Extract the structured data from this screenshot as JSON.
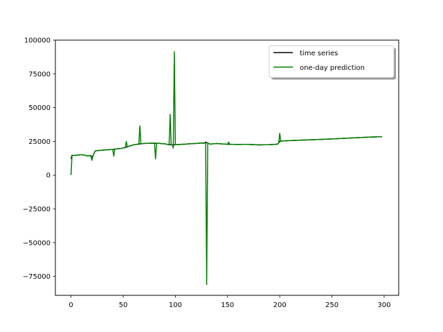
{
  "chart_data": {
    "type": "line",
    "title": "",
    "xlabel": "",
    "ylabel": "",
    "xlim": [
      -14.95,
      313.95
    ],
    "ylim": [
      -89000,
      100000
    ],
    "xticks": [
      0,
      50,
      100,
      150,
      200,
      250,
      300
    ],
    "yticks": [
      -75000,
      -50000,
      -25000,
      0,
      25000,
      50000,
      75000,
      100000
    ],
    "xtick_labels": [
      "0",
      "50",
      "100",
      "150",
      "200",
      "250",
      "300"
    ],
    "ytick_labels": [
      "−75000",
      "−50000",
      "−25000",
      "0",
      "25000",
      "50000",
      "75000",
      "100000"
    ],
    "legend": {
      "location": "top-right"
    },
    "series": [
      {
        "name": "time series",
        "color": "#000000",
        "x": [
          0,
          1,
          2,
          5,
          8,
          10,
          13,
          16,
          19,
          20,
          21,
          22,
          23,
          25,
          30,
          35,
          40,
          42,
          44,
          48,
          52,
          54,
          56,
          60,
          65,
          67,
          70,
          75,
          80,
          82,
          84,
          86,
          90,
          94,
          96,
          98,
          100,
          102,
          105,
          110,
          115,
          120,
          125,
          128,
          129,
          130,
          131,
          133,
          136,
          140,
          145,
          150,
          155,
          160,
          165,
          170,
          175,
          180,
          185,
          190,
          195,
          198,
          200,
          202,
          205,
          210,
          220,
          230,
          240,
          250,
          260,
          270,
          280,
          290,
          298
        ],
        "y": [
          12000,
          14800,
          14600,
          14700,
          15000,
          15200,
          14800,
          14200,
          14500,
          13500,
          14000,
          16000,
          17800,
          18200,
          18500,
          18800,
          19000,
          19300,
          19500,
          19800,
          20500,
          21000,
          21500,
          22500,
          23000,
          23200,
          23500,
          23600,
          23700,
          23500,
          23600,
          23400,
          23200,
          22500,
          22600,
          22400,
          22500,
          22600,
          22800,
          23000,
          23300,
          23500,
          23800,
          23700,
          24500,
          24200,
          23800,
          23000,
          23200,
          23400,
          23100,
          22900,
          22800,
          22700,
          22800,
          22800,
          22600,
          22400,
          22500,
          22600,
          22800,
          23000,
          25000,
          25300,
          25400,
          25600,
          25900,
          26200,
          26500,
          26800,
          27200,
          27600,
          28000,
          28300,
          28500
        ]
      },
      {
        "name": "one-day prediction",
        "color": "#008000",
        "x": [
          0,
          1,
          2,
          5,
          8,
          10,
          13,
          16,
          19,
          20,
          21,
          22,
          23,
          25,
          30,
          35,
          40,
          41,
          42,
          43,
          44,
          48,
          52,
          53,
          54,
          55,
          56,
          60,
          64,
          65,
          66,
          67,
          68,
          70,
          75,
          80,
          81,
          82,
          83,
          84,
          86,
          90,
          94,
          95,
          96,
          97,
          98,
          99,
          100,
          101,
          102,
          105,
          110,
          115,
          120,
          125,
          128,
          129,
          130,
          131,
          132,
          133,
          136,
          140,
          145,
          150,
          151,
          152,
          153,
          155,
          160,
          165,
          170,
          175,
          180,
          185,
          190,
          195,
          198,
          199,
          200,
          201,
          202,
          205,
          210,
          220,
          230,
          240,
          250,
          260,
          270,
          280,
          290,
          298
        ],
        "y": [
          0,
          14800,
          14600,
          14700,
          15000,
          15200,
          14800,
          14200,
          14500,
          11000,
          14000,
          16000,
          17800,
          18200,
          18500,
          18800,
          19000,
          14000,
          19300,
          19400,
          19500,
          19800,
          20500,
          25000,
          21000,
          21300,
          21500,
          22500,
          23000,
          23000,
          36500,
          23200,
          23300,
          23500,
          23600,
          23700,
          12000,
          23500,
          23600,
          23600,
          23400,
          23200,
          22500,
          45000,
          22600,
          22400,
          20000,
          91500,
          22500,
          22600,
          22600,
          22800,
          23000,
          23300,
          23500,
          23800,
          23700,
          24000,
          -81000,
          23800,
          23500,
          23000,
          23200,
          23400,
          23100,
          22900,
          24500,
          22900,
          22800,
          22800,
          22700,
          22800,
          22800,
          22600,
          22400,
          22500,
          22600,
          22800,
          23000,
          24000,
          31000,
          25000,
          25300,
          25400,
          25600,
          25900,
          26200,
          26500,
          26800,
          27200,
          27600,
          28000,
          28300,
          28500
        ]
      }
    ]
  }
}
